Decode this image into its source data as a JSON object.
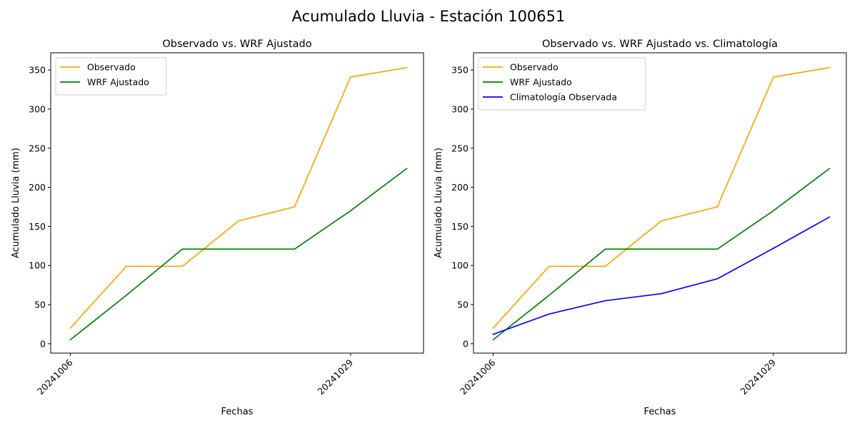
{
  "figure": {
    "suptitle": "Acumulado Lluvia - Estación 100651"
  },
  "chart_data": [
    {
      "type": "line",
      "title": "Observado vs. WRF Ajustado",
      "xlabel": "Fechas",
      "ylabel": "Acumulado Lluvia (mm)",
      "x": [
        0,
        1,
        2,
        3,
        4,
        5,
        6
      ],
      "x_tick_values": [
        0,
        5
      ],
      "x_tick_labels": [
        "20241006",
        "20241029"
      ],
      "xlim": [
        -0.35,
        6.3
      ],
      "ylim": [
        -12,
        372
      ],
      "y_ticks": [
        0,
        50,
        100,
        150,
        200,
        250,
        300,
        350
      ],
      "legend": "top-left",
      "grid": false,
      "series": [
        {
          "name": "Observado",
          "color": "#ffa500",
          "values": [
            20,
            99,
            99,
            157,
            175,
            341,
            353
          ]
        },
        {
          "name": "WRF Ajustado",
          "color": "#008000",
          "values": [
            5,
            62,
            121,
            121,
            121,
            170,
            224
          ]
        }
      ]
    },
    {
      "type": "line",
      "title": "Observado vs. WRF Ajustado vs. Climatología",
      "xlabel": "Fechas",
      "ylabel": "Acumulado Lluvia (mm)",
      "x": [
        0,
        1,
        2,
        3,
        4,
        5,
        6
      ],
      "x_tick_values": [
        0,
        5
      ],
      "x_tick_labels": [
        "20241006",
        "20241029"
      ],
      "xlim": [
        -0.35,
        6.3
      ],
      "ylim": [
        -12,
        372
      ],
      "y_ticks": [
        0,
        50,
        100,
        150,
        200,
        250,
        300,
        350
      ],
      "legend": "top-left",
      "grid": false,
      "series": [
        {
          "name": "Observado",
          "color": "#ffa500",
          "values": [
            20,
            99,
            99,
            157,
            175,
            341,
            353
          ]
        },
        {
          "name": "WRF Ajustado",
          "color": "#008000",
          "values": [
            5,
            62,
            121,
            121,
            121,
            170,
            224
          ]
        },
        {
          "name": "Climatología Observada",
          "color": "#0000ff",
          "values": [
            12,
            38,
            55,
            64,
            83,
            122,
            162
          ]
        }
      ]
    }
  ]
}
